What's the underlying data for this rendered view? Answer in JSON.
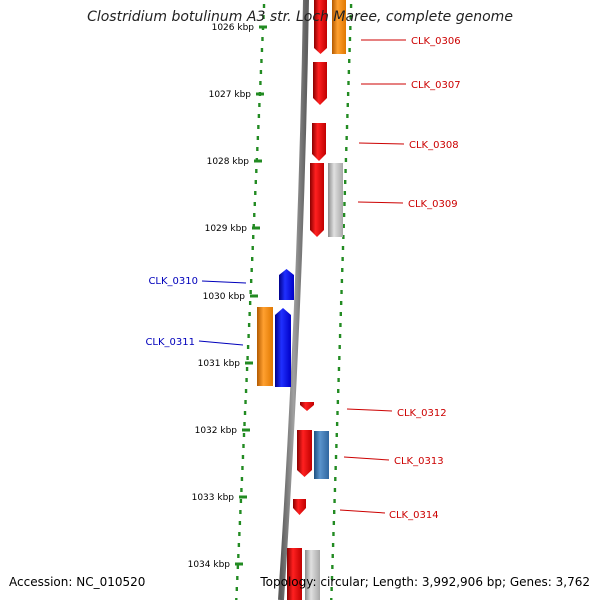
{
  "title": "Clostridium botulinum A3 str. Loch Maree, complete genome",
  "footer": {
    "accession": "Accession: NC_010520",
    "summary": "Topology: circular; Length: 3,992,906 bp; Genes: 3,762"
  },
  "colors": {
    "red": "#e8000a",
    "orange": "#ff8c00",
    "blue": "#0000ee",
    "steelblue": "#3a78b4",
    "gray": "#b8b8b8",
    "backbone": "#808080",
    "tick": "#228b22",
    "label_red": "#cc0000",
    "label_blue": "#0000bb"
  },
  "ruler": [
    {
      "label": "1026 kbp"
    },
    {
      "label": "1027 kbp"
    },
    {
      "label": "1028 kbp"
    },
    {
      "label": "1029 kbp"
    },
    {
      "label": "1030 kbp"
    },
    {
      "label": "1031 kbp"
    },
    {
      "label": "1032 kbp"
    },
    {
      "label": "1033 kbp"
    },
    {
      "label": "1034 kbp"
    }
  ],
  "gene_labels": [
    {
      "name": "CLK_0306",
      "color": "label_red"
    },
    {
      "name": "CLK_0307",
      "color": "label_red"
    },
    {
      "name": "CLK_0308",
      "color": "label_red"
    },
    {
      "name": "CLK_0309",
      "color": "label_red"
    },
    {
      "name": "CLK_0310",
      "color": "label_blue"
    },
    {
      "name": "CLK_0311",
      "color": "label_blue"
    },
    {
      "name": "CLK_0312",
      "color": "label_red"
    },
    {
      "name": "CLK_0313",
      "color": "label_red"
    },
    {
      "name": "CLK_0314",
      "color": "label_red"
    }
  ]
}
